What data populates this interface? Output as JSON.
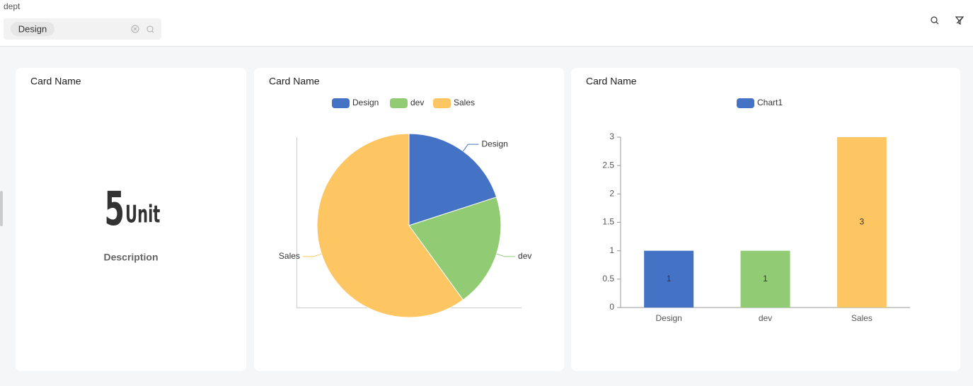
{
  "filter": {
    "label": "dept",
    "tag": "Design"
  },
  "cards": [
    {
      "title": "Card Name",
      "value": 5,
      "unit": "Unit",
      "description": "Description"
    },
    {
      "title": "Card Name"
    },
    {
      "title": "Card Name"
    }
  ],
  "chart_data": [
    {
      "type": "pie",
      "categories": [
        "Design",
        "dev",
        "Sales"
      ],
      "values": [
        1,
        1,
        3
      ],
      "colors": [
        "#4472c4",
        "#91cc75",
        "#fec662"
      ]
    },
    {
      "type": "bar",
      "categories": [
        "Design",
        "dev",
        "Sales"
      ],
      "series": [
        {
          "name": "Chart1",
          "color": "#4472c4",
          "values": [
            1,
            1,
            3
          ]
        }
      ],
      "colors": [
        "#4472c4",
        "#91cc75",
        "#fec662"
      ],
      "ylim": [
        0,
        3
      ],
      "yticks": [
        0,
        0.5,
        1,
        1.5,
        2,
        2.5,
        3
      ]
    }
  ]
}
